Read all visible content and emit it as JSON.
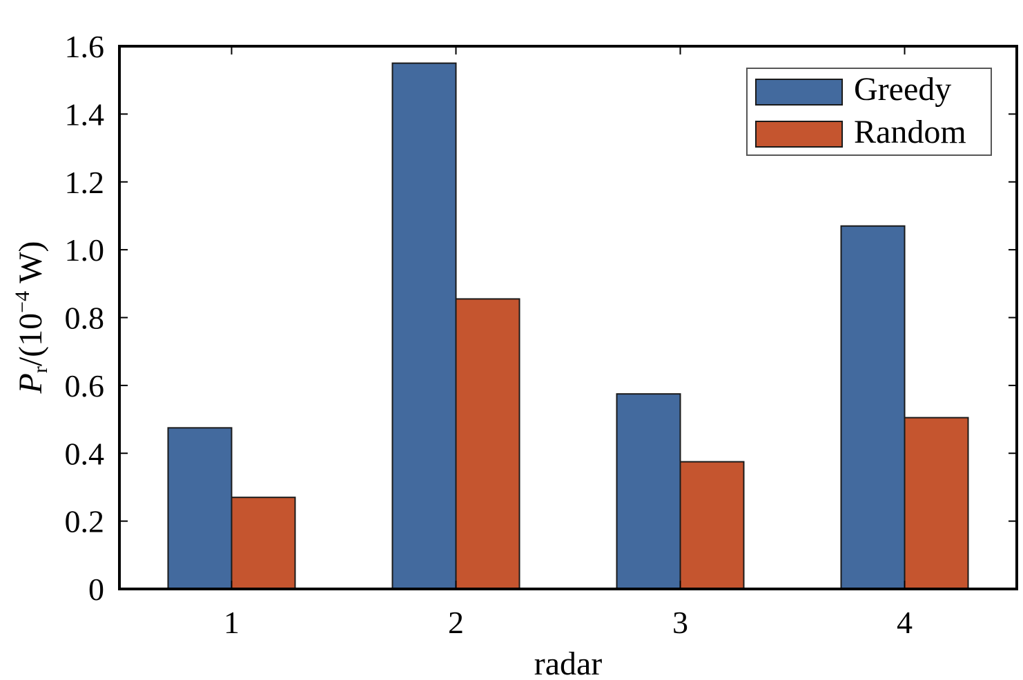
{
  "chart_data": {
    "type": "bar",
    "categories": [
      "1",
      "2",
      "3",
      "4"
    ],
    "series": [
      {
        "name": "Greedy",
        "values": [
          0.475,
          1.55,
          0.575,
          1.07
        ],
        "color": "#436a9e"
      },
      {
        "name": "Random",
        "values": [
          0.27,
          0.855,
          0.375,
          0.505
        ],
        "color": "#c5552f"
      }
    ],
    "xlabel": "radar",
    "ylabel": {
      "symbol": "P",
      "subscript": "r",
      "unit_prefix": "/(10",
      "exponent": "−4",
      "unit_suffix": " W)"
    },
    "ylim": [
      0,
      1.6
    ],
    "yticks": [
      "0",
      "0.2",
      "0.4",
      "0.6",
      "0.8",
      "1.0",
      "1.2",
      "1.4",
      "1.6"
    ],
    "grid": false,
    "legend_position": "top-right",
    "edge_color": "#1a1a1a"
  }
}
